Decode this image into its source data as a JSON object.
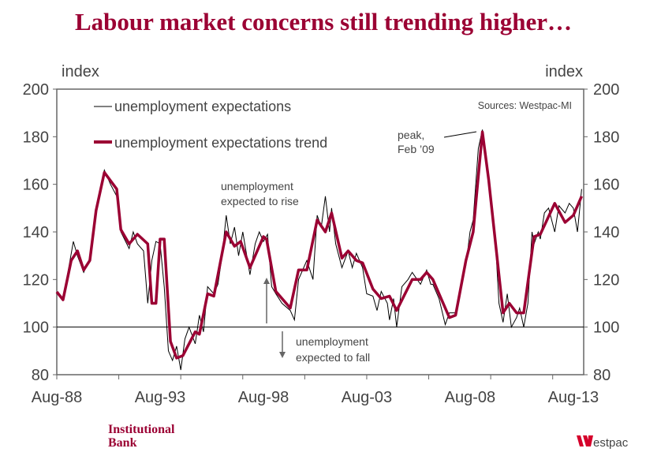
{
  "colors": {
    "title": "#9b0033",
    "trend": "#9b0033",
    "raw": "#000000",
    "text": "#444444"
  },
  "logos": {
    "left": "Institutional Bank",
    "right": "Westpac"
  },
  "chart_data": {
    "type": "line",
    "title": "Labour market concerns still trending higher…",
    "ylabel_left": "index",
    "ylabel_right": "index",
    "ylim": [
      80,
      200
    ],
    "yticks": [
      80,
      100,
      120,
      140,
      160,
      180,
      200
    ],
    "xlim": [
      1988.6,
      2014.1
    ],
    "xticks": [
      {
        "x": 1988.6,
        "label": "Aug-88"
      },
      {
        "x": 1993.6,
        "label": "Aug-93"
      },
      {
        "x": 1998.6,
        "label": "Aug-98"
      },
      {
        "x": 2003.6,
        "label": "Aug-03"
      },
      {
        "x": 2008.6,
        "label": "Aug-08"
      },
      {
        "x": 2013.6,
        "label": "Aug-13"
      }
    ],
    "minor_tick_step_years": 3,
    "reference_line": 100,
    "source": "Sources: Westpac-MI",
    "legend": [
      "unemployment expectations",
      "unemployment expectations trend"
    ],
    "annotations": {
      "peak": [
        "peak,",
        "Feb ’09"
      ],
      "rise": [
        "unemployment",
        "expected to rise"
      ],
      "fall": [
        "unemployment",
        "expected to fall"
      ]
    },
    "series": [
      {
        "name": "unemployment expectations trend",
        "x": [
          1988.6,
          1988.9,
          1989.3,
          1989.6,
          1989.9,
          1990.2,
          1990.5,
          1990.9,
          1991.5,
          1991.7,
          1992.1,
          1992.5,
          1993.0,
          1993.2,
          1993.4,
          1993.6,
          1993.8,
          1994.1,
          1994.4,
          1994.7,
          1995.3,
          1995.5,
          1995.9,
          1996.2,
          1996.8,
          1997.2,
          1997.5,
          1997.95,
          1998.6,
          1998.75,
          1999.2,
          1999.9,
          2000.3,
          2000.7,
          2001.2,
          2001.6,
          2001.9,
          2002.4,
          2002.7,
          2003.1,
          2003.4,
          2003.9,
          2004.3,
          2004.7,
          2005.05,
          2005.8,
          2006.2,
          2006.5,
          2006.8,
          2007.6,
          2007.9,
          2008.4,
          2008.75,
          2009.2,
          2009.5,
          2010.2,
          2010.5,
          2010.85,
          2011.2,
          2011.7,
          2012.0,
          2012.7,
          2013.2,
          2013.6,
          2014.0
        ],
        "y": [
          114.8,
          111.5,
          128,
          132,
          124,
          128,
          149,
          165,
          158,
          141,
          135,
          139,
          135,
          110,
          110,
          137,
          137,
          94,
          87,
          88,
          98,
          97,
          114,
          113,
          140,
          134,
          136,
          125,
          138,
          137,
          115,
          108,
          124,
          124,
          145,
          140,
          148,
          129,
          132,
          128,
          127,
          116,
          112,
          113,
          107,
          120,
          120,
          123,
          120,
          104,
          105,
          128,
          140,
          182,
          162,
          106,
          110,
          106,
          106,
          138,
          139,
          152,
          144,
          147,
          155
        ]
      },
      {
        "name": "unemployment expectations",
        "x": [
          1988.6,
          1988.9,
          1989.2,
          1989.4,
          1989.6,
          1989.9,
          1990.2,
          1990.5,
          1990.9,
          1991.2,
          1991.5,
          1991.7,
          1992.1,
          1992.3,
          1992.5,
          1992.8,
          1993.0,
          1993.2,
          1993.4,
          1993.6,
          1993.8,
          1994.0,
          1994.2,
          1994.4,
          1994.6,
          1994.8,
          1995.0,
          1995.3,
          1995.5,
          1995.7,
          1995.9,
          1996.2,
          1996.4,
          1996.6,
          1996.8,
          1997.0,
          1997.2,
          1997.4,
          1997.6,
          1997.95,
          1998.2,
          1998.4,
          1998.6,
          1998.8,
          1999.0,
          1999.2,
          1999.5,
          1999.9,
          2000.1,
          2000.3,
          2000.7,
          2001.0,
          2001.2,
          2001.4,
          2001.6,
          2001.8,
          2001.9,
          2002.1,
          2002.4,
          2002.7,
          2002.9,
          2003.1,
          2003.4,
          2003.6,
          2003.9,
          2004.1,
          2004.3,
          2004.6,
          2004.7,
          2004.9,
          2005.05,
          2005.3,
          2005.6,
          2005.8,
          2006.2,
          2006.5,
          2006.7,
          2006.8,
          2007.1,
          2007.4,
          2007.6,
          2007.9,
          2008.1,
          2008.4,
          2008.6,
          2008.75,
          2009.0,
          2009.2,
          2009.5,
          2009.8,
          2010.0,
          2010.2,
          2010.4,
          2010.6,
          2010.85,
          2011.0,
          2011.2,
          2011.4,
          2011.6,
          2011.7,
          2011.9,
          2012.0,
          2012.2,
          2012.4,
          2012.7,
          2012.9,
          2013.2,
          2013.4,
          2013.6,
          2013.8,
          2014.0
        ],
        "y": [
          114,
          112,
          126,
          136,
          130,
          123,
          129,
          150,
          166,
          160,
          155,
          140,
          133,
          140,
          135,
          132,
          110,
          128,
          136,
          135,
          117,
          90,
          86,
          92,
          82,
          95,
          100,
          93,
          105,
          98,
          117,
          114,
          118,
          130,
          147,
          135,
          142,
          130,
          140,
          122,
          135,
          140,
          136,
          139,
          117,
          114,
          110,
          107,
          103,
          120,
          128,
          120,
          147,
          142,
          155,
          140,
          150,
          135,
          125,
          132,
          125,
          131,
          125,
          114,
          113,
          107,
          115,
          110,
          103,
          112,
          100,
          117,
          120,
          123,
          118,
          124,
          118,
          118,
          112,
          101,
          106,
          106,
          115,
          126,
          140,
          145,
          175,
          183,
          160,
          140,
          110,
          102,
          114,
          100,
          104,
          108,
          100,
          110,
          140,
          135,
          140,
          137,
          148,
          150,
          140,
          151,
          148,
          152,
          150,
          140,
          158
        ]
      }
    ]
  }
}
